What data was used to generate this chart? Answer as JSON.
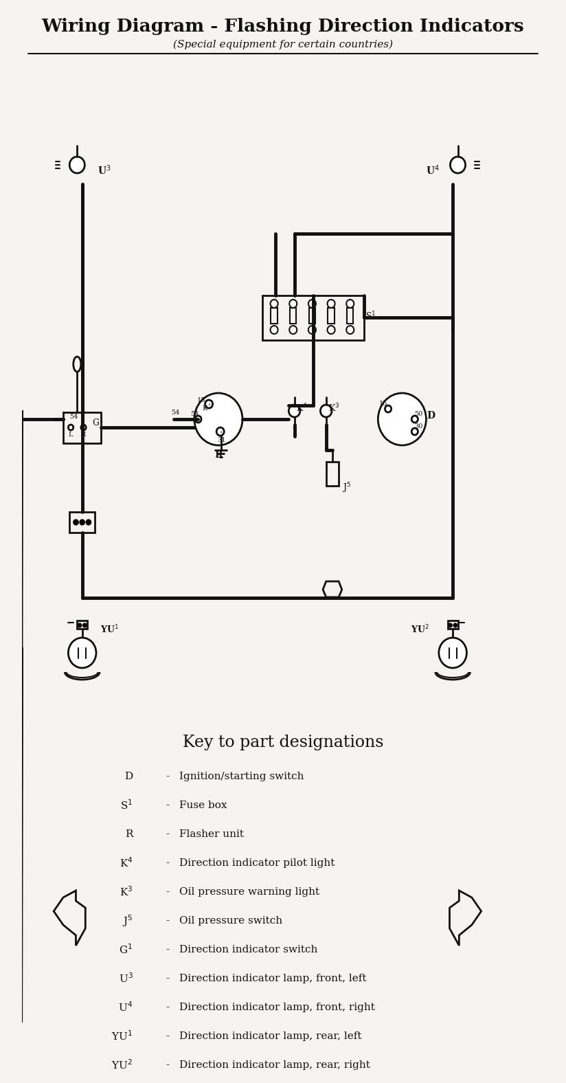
{
  "title": "Wiring Diagram - Flashing Direction Indicators",
  "subtitle": "(Special equipment for certain countries)",
  "bg_color": "#f5f4f0",
  "line_color": "#111111",
  "key_title": "Key to part designations",
  "key_items": [
    [
      "D",
      "Ignition/starting switch"
    ],
    [
      "S¹",
      "Fuse box"
    ],
    [
      "R",
      "Flasher unit"
    ],
    [
      "K⁴",
      "Direction indicator pilot light"
    ],
    [
      "K³",
      "Oil pressure warning light"
    ],
    [
      "J⁵",
      "Oil pressure switch"
    ],
    [
      "G¹",
      "Direction indicator switch"
    ],
    [
      "U³",
      "Direction indicator lamp, front, left"
    ],
    [
      "U⁴",
      "Direction indicator lamp, front, right"
    ],
    [
      "YU¹",
      "Direction indicator lamp, rear, left"
    ],
    [
      "YU²",
      "Direction indicator lamp, rear, right"
    ]
  ]
}
